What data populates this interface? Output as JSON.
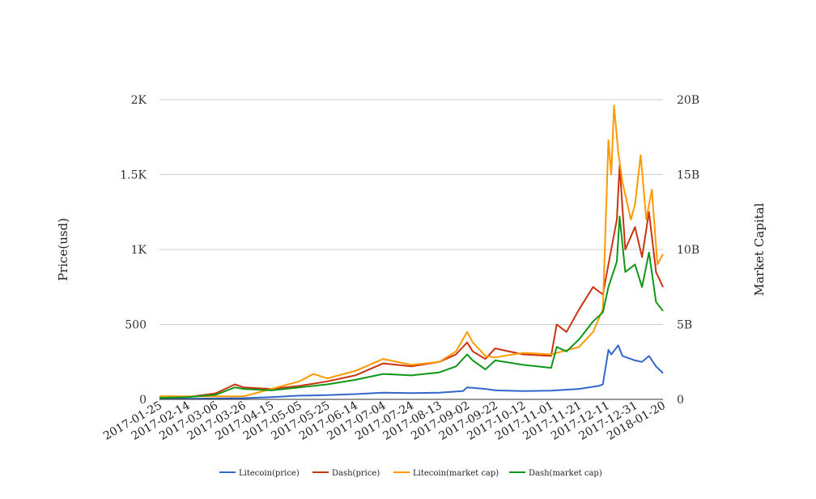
{
  "chart_data": {
    "type": "line",
    "title": "",
    "left_axis": {
      "label": "Price(usd)",
      "range": [
        0,
        2000
      ],
      "ticks": [
        0,
        500,
        1000,
        1500,
        2000
      ],
      "tick_labels": [
        "0",
        "500",
        "1K",
        "1.5K",
        "2K"
      ]
    },
    "right_axis": {
      "label": "Market Capital",
      "range": [
        0,
        20000000000
      ],
      "ticks": [
        0,
        5000000000,
        10000000000,
        15000000000,
        20000000000
      ],
      "tick_labels": [
        "0",
        "5B",
        "10B",
        "15B",
        "20B"
      ]
    },
    "x_range": [
      "2017-01-25",
      "2018-01-20"
    ],
    "x_tick_labels": [
      "2017-01-25",
      "2017-02-14",
      "2017-03-06",
      "2017-03-26",
      "2017-04-15",
      "2017-05-05",
      "2017-05-25",
      "2017-06-14",
      "2017-07-04",
      "2017-07-24",
      "2017-08-13",
      "2017-09-02",
      "2017-09-22",
      "2017-10-12",
      "2017-11-01",
      "2017-11-21",
      "2017-12-11",
      "2017-12-31",
      "2018-01-20"
    ],
    "grid": true,
    "legend_position": "bottom",
    "series": [
      {
        "name": "Litecoin(price)",
        "axis": "left",
        "color": "#3366cc",
        "x": [
          "2017-01-25",
          "2017-02-14",
          "2017-03-06",
          "2017-03-26",
          "2017-04-15",
          "2017-05-05",
          "2017-05-25",
          "2017-06-14",
          "2017-07-04",
          "2017-07-24",
          "2017-08-13",
          "2017-08-30",
          "2017-09-02",
          "2017-09-15",
          "2017-09-22",
          "2017-10-12",
          "2017-11-01",
          "2017-11-21",
          "2017-12-05",
          "2017-12-08",
          "2017-12-12",
          "2017-12-14",
          "2017-12-19",
          "2017-12-22",
          "2017-12-31",
          "2018-01-05",
          "2018-01-10",
          "2018-01-15",
          "2018-01-20"
        ],
        "y": [
          4,
          4,
          6,
          8,
          15,
          25,
          28,
          35,
          45,
          42,
          45,
          55,
          80,
          70,
          60,
          55,
          58,
          70,
          90,
          100,
          330,
          300,
          360,
          290,
          260,
          250,
          290,
          220,
          175
        ]
      },
      {
        "name": "Dash(price)",
        "axis": "left",
        "color": "#cc3311",
        "x": [
          "2017-01-25",
          "2017-02-14",
          "2017-03-06",
          "2017-03-20",
          "2017-03-26",
          "2017-04-15",
          "2017-05-05",
          "2017-05-25",
          "2017-06-14",
          "2017-07-04",
          "2017-07-24",
          "2017-08-13",
          "2017-08-25",
          "2017-09-02",
          "2017-09-06",
          "2017-09-15",
          "2017-09-22",
          "2017-10-12",
          "2017-11-01",
          "2017-11-05",
          "2017-11-12",
          "2017-11-21",
          "2017-12-01",
          "2017-12-08",
          "2017-12-12",
          "2017-12-18",
          "2017-12-20",
          "2017-12-24",
          "2017-12-31",
          "2018-01-05",
          "2018-01-10",
          "2018-01-15",
          "2018-01-20"
        ],
        "y": [
          12,
          15,
          40,
          100,
          80,
          70,
          90,
          120,
          160,
          240,
          220,
          250,
          300,
          380,
          320,
          270,
          340,
          300,
          290,
          500,
          450,
          600,
          750,
          700,
          900,
          1200,
          1560,
          1000,
          1150,
          950,
          1250,
          850,
          750
        ]
      },
      {
        "name": "Litecoin(market cap)",
        "axis": "right",
        "color": "#ff9900",
        "x": [
          "2017-01-25",
          "2017-02-14",
          "2017-03-06",
          "2017-03-26",
          "2017-04-15",
          "2017-05-05",
          "2017-05-15",
          "2017-05-25",
          "2017-06-14",
          "2017-07-04",
          "2017-07-24",
          "2017-08-13",
          "2017-08-25",
          "2017-09-02",
          "2017-09-06",
          "2017-09-15",
          "2017-09-22",
          "2017-10-12",
          "2017-11-01",
          "2017-11-21",
          "2017-12-01",
          "2017-12-08",
          "2017-12-12",
          "2017-12-14",
          "2017-12-16",
          "2017-12-19",
          "2017-12-22",
          "2017-12-28",
          "2017-12-31",
          "2018-01-04",
          "2018-01-08",
          "2018-01-12",
          "2018-01-16",
          "2018-01-20"
        ],
        "y": [
          200000000,
          200000000,
          200000000,
          200000000,
          700000000,
          1200000000,
          1700000000,
          1400000000,
          1900000000,
          2700000000,
          2300000000,
          2500000000,
          3200000000,
          4500000000,
          3800000000,
          2900000000,
          2800000000,
          3100000000,
          3000000000,
          3500000000,
          4500000000,
          6000000000,
          17300000000,
          15000000000,
          19600000000,
          16500000000,
          14500000000,
          12000000000,
          13000000000,
          16300000000,
          12000000000,
          14000000000,
          9000000000,
          9700000000
        ]
      },
      {
        "name": "Dash(market cap)",
        "axis": "right",
        "color": "#109618",
        "x": [
          "2017-01-25",
          "2017-02-14",
          "2017-03-06",
          "2017-03-20",
          "2017-03-26",
          "2017-04-15",
          "2017-05-05",
          "2017-05-25",
          "2017-06-14",
          "2017-07-04",
          "2017-07-24",
          "2017-08-13",
          "2017-08-25",
          "2017-09-02",
          "2017-09-06",
          "2017-09-15",
          "2017-09-22",
          "2017-10-12",
          "2017-11-01",
          "2017-11-05",
          "2017-11-12",
          "2017-11-21",
          "2017-12-01",
          "2017-12-08",
          "2017-12-12",
          "2017-12-18",
          "2017-12-20",
          "2017-12-24",
          "2017-12-31",
          "2018-01-05",
          "2018-01-10",
          "2018-01-15",
          "2018-01-20"
        ],
        "y": [
          100000000,
          150000000,
          300000000,
          800000000,
          700000000,
          600000000,
          800000000,
          1000000000,
          1300000000,
          1700000000,
          1600000000,
          1800000000,
          2200000000,
          3000000000,
          2600000000,
          2000000000,
          2600000000,
          2300000000,
          2100000000,
          3500000000,
          3200000000,
          4000000000,
          5200000000,
          5800000000,
          7500000000,
          9200000000,
          12200000000,
          8500000000,
          9000000000,
          7500000000,
          9800000000,
          6500000000,
          5900000000
        ]
      }
    ]
  }
}
